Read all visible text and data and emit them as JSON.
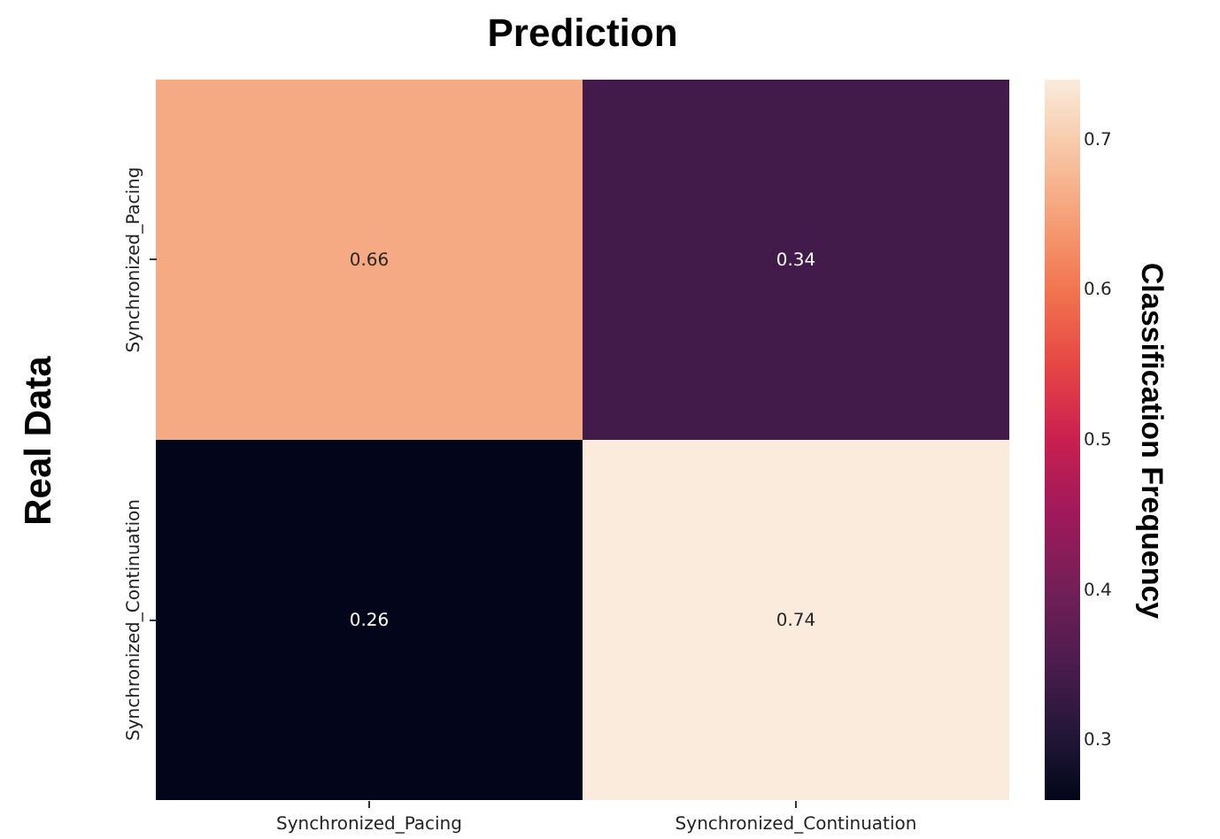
{
  "chart_data": {
    "type": "heatmap",
    "title": "Prediction",
    "ylabel": "Real Data",
    "clabel": "Classification Frequency",
    "categories": [
      "Synchronized_Pacing",
      "Synchronized_Continuation"
    ],
    "y_categories": [
      "Synchronized_Pacing",
      "Synchronized_Continuation"
    ],
    "cells": [
      [
        0.66,
        0.34
      ],
      [
        0.26,
        0.74
      ]
    ],
    "clim": [
      0.26,
      0.74
    ],
    "cticks": [
      0.3,
      0.4,
      0.5,
      0.6,
      0.7
    ],
    "data_labels": true
  }
}
